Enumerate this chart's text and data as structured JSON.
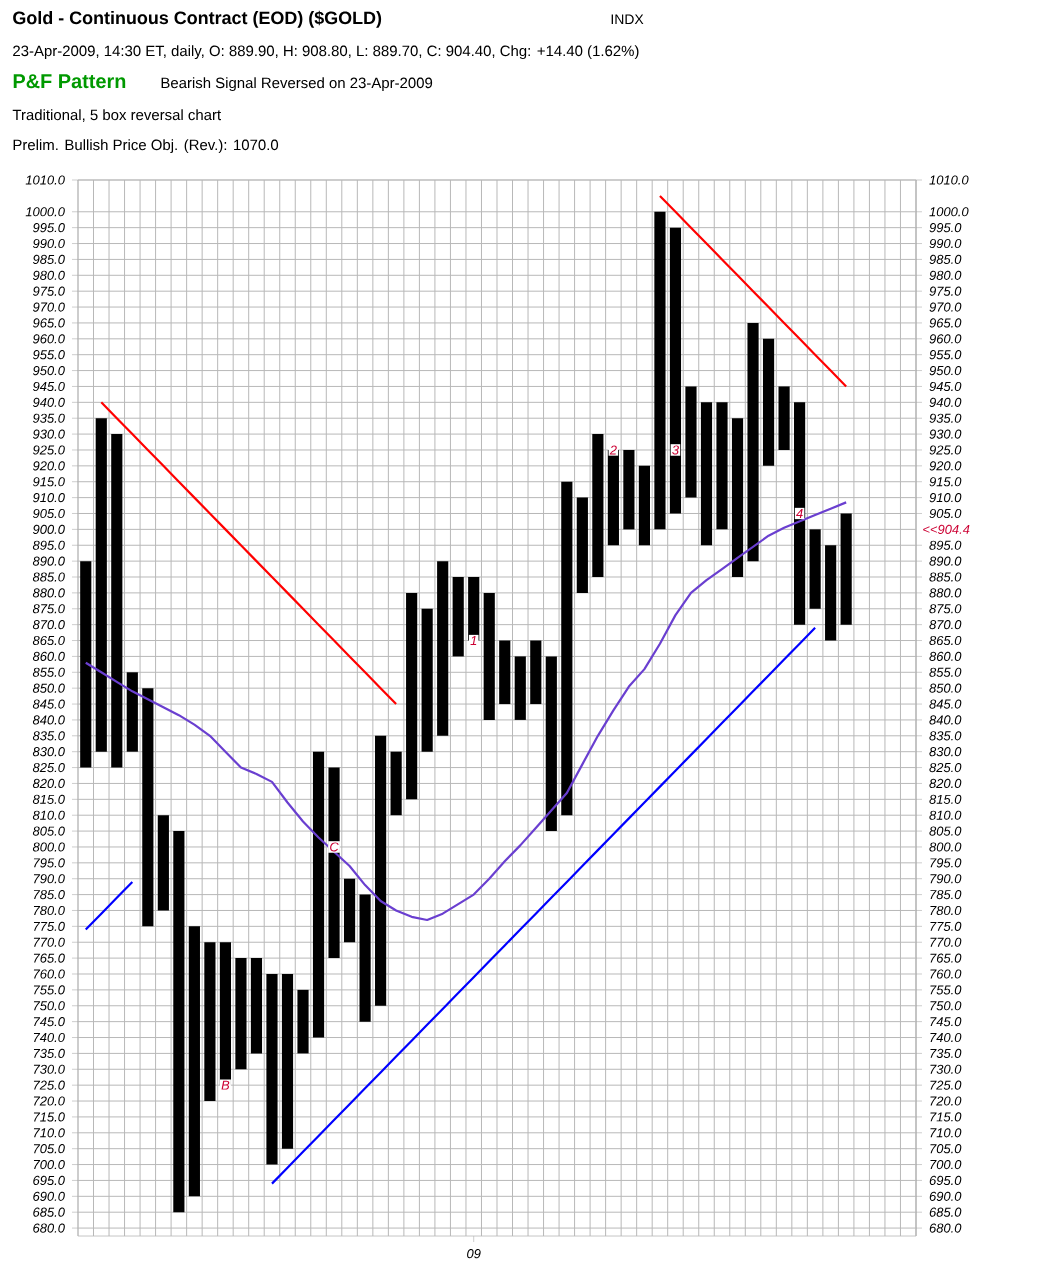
{
  "chart_data": {
    "type": "bar",
    "title": "Gold - Continuous Contract (EOD) ($GOLD)",
    "subtitle": "23-Apr-2009, 14:30 ET, daily, O: 889.90, H: 908.80, L: 889.70, C: 904.40, Chg: +14.40 (1.62%)",
    "categories": [
      null,
      null,
      null,
      null,
      null,
      null,
      null,
      null,
      null,
      null,
      null,
      null,
      null,
      null,
      null,
      null,
      null,
      null,
      null,
      null,
      null,
      null,
      null,
      null,
      null,
      "09",
      null,
      null,
      null,
      null,
      null,
      null,
      null,
      null,
      null,
      null,
      null,
      null,
      null,
      null,
      null,
      null,
      null,
      null,
      null,
      null,
      null,
      null,
      null,
      null
    ],
    "ylim": [
      677.5,
      1010
    ],
    "y2lim": [
      677.5,
      1010
    ],
    "grid": true,
    "series": [
      {
        "color": "#000000",
        "base": [
          825,
          null,
          825,
          null,
          775,
          null,
          685,
          null,
          720,
          null,
          730,
          null,
          700,
          null,
          735,
          null,
          765,
          null,
          745,
          null,
          810,
          null,
          830,
          null,
          860,
          null,
          840,
          null,
          840,
          null,
          805,
          null,
          880,
          null,
          895,
          null,
          895,
          null,
          905,
          null,
          895,
          null,
          885,
          null,
          920,
          null,
          870,
          null,
          865,
          null
        ],
        "values": [
          65,
          null,
          105,
          null,
          75,
          null,
          120,
          null,
          50,
          null,
          35,
          null,
          60,
          null,
          20,
          null,
          60,
          null,
          40,
          null,
          20,
          null,
          45,
          null,
          25,
          null,
          40,
          null,
          20,
          null,
          55,
          null,
          30,
          null,
          30,
          null,
          25,
          null,
          90,
          null,
          45,
          null,
          50,
          null,
          40,
          null,
          70,
          null,
          30,
          null
        ]
      },
      {
        "color": "#000000",
        "base": [
          null,
          830,
          null,
          830,
          null,
          780,
          null,
          690,
          null,
          725,
          null,
          735,
          null,
          705,
          null,
          740,
          null,
          770,
          null,
          750,
          null,
          815,
          null,
          835,
          null,
          865,
          null,
          845,
          null,
          845,
          null,
          810,
          null,
          885,
          null,
          900,
          null,
          900,
          null,
          910,
          null,
          900,
          null,
          890,
          null,
          925,
          null,
          875,
          null,
          870
        ],
        "values": [
          null,
          105,
          null,
          25,
          null,
          30,
          null,
          85,
          null,
          45,
          null,
          30,
          null,
          55,
          null,
          90,
          null,
          20,
          null,
          85,
          null,
          65,
          null,
          55,
          null,
          20,
          null,
          20,
          null,
          20,
          null,
          105,
          null,
          45,
          null,
          25,
          null,
          100,
          null,
          35,
          null,
          40,
          null,
          75,
          null,
          20,
          null,
          25,
          null,
          35
        ]
      },
      {
        "type": "line",
        "color": "#6a3fd0",
        "values": [
          858,
          855,
          852,
          849,
          846.5,
          844,
          841.5,
          838.5,
          835,
          830,
          825,
          823,
          820.5,
          814,
          808,
          803,
          798.5,
          794,
          788,
          783,
          780,
          778,
          777,
          779,
          782,
          785,
          790,
          795.5,
          800.5,
          806,
          811.5,
          817,
          826,
          835,
          843,
          850.5,
          856,
          864,
          873,
          880,
          884,
          887.5,
          891,
          894.5,
          898,
          900.5,
          902.5,
          904.5,
          906.5,
          908.5
        ]
      },
      {
        "type": "line",
        "color": "#ff0000",
        "values": [
          null,
          940,
          935,
          930,
          925,
          920,
          915,
          910,
          905,
          900,
          895,
          890,
          885,
          880,
          875,
          870,
          865,
          860,
          855,
          850,
          845,
          null,
          null,
          null,
          null,
          null,
          null,
          null,
          null,
          null,
          null,
          null,
          null,
          null,
          null,
          null,
          null,
          null,
          null,
          null,
          null,
          null,
          null,
          null,
          null,
          null,
          null,
          null,
          null,
          null
        ]
      },
      {
        "type": "line",
        "color": "#ff0000",
        "values": [
          null,
          null,
          null,
          null,
          null,
          null,
          null,
          null,
          null,
          null,
          null,
          null,
          null,
          null,
          null,
          null,
          null,
          null,
          null,
          null,
          null,
          null,
          null,
          null,
          null,
          null,
          null,
          null,
          null,
          null,
          null,
          null,
          null,
          null,
          null,
          null,
          null,
          1005,
          1000,
          995,
          990,
          985,
          980,
          975,
          970,
          965,
          960,
          955,
          950,
          945
        ]
      },
      {
        "type": "line",
        "color": "#0000ff",
        "values": [
          774,
          779,
          784,
          789,
          null,
          null,
          null,
          null,
          null,
          null,
          null,
          null,
          null,
          null,
          null,
          null,
          null,
          null,
          null,
          null,
          null,
          null,
          null,
          null,
          null,
          null,
          null,
          null,
          null,
          null,
          null,
          null,
          null,
          null,
          null,
          null,
          null,
          null,
          null,
          null,
          null,
          null,
          null,
          null,
          null,
          null,
          null,
          null,
          null,
          null
        ]
      },
      {
        "type": "line",
        "color": "#0000ff",
        "values": [
          null,
          null,
          null,
          null,
          null,
          null,
          null,
          null,
          null,
          null,
          null,
          null,
          694,
          699,
          704,
          709,
          714,
          719,
          724,
          729,
          734,
          739,
          744,
          749,
          754,
          759,
          764,
          769,
          774,
          779,
          784,
          789,
          794,
          799,
          804,
          809,
          814,
          819,
          824,
          829,
          834,
          839,
          844,
          849,
          854,
          859,
          864,
          869,
          null,
          null
        ]
      }
    ],
    "annotations": [
      "INDX",
      "P&F Pattern",
      "Bearish Signal Reversed on 23-Apr-2009",
      "Traditional, 5 box reversal chart",
      "Prelim. Bullish Price Obj. (Rev.): 1070.0",
      "B",
      "C",
      "1",
      "2",
      "3",
      "4",
      "<<904.4"
    ],
    "yticks": [
      {
        "value": 680,
        "label": "680.0"
      },
      {
        "value": 685,
        "label": "685.0"
      },
      {
        "value": 690,
        "label": "690.0"
      },
      {
        "value": 695,
        "label": "695.0"
      },
      {
        "value": 700,
        "label": "700.0"
      },
      {
        "value": 705,
        "label": "705.0"
      },
      {
        "value": 710,
        "label": "710.0"
      },
      {
        "value": 715,
        "label": "715.0"
      },
      {
        "value": 720,
        "label": "720.0"
      },
      {
        "value": 725,
        "label": "725.0"
      },
      {
        "value": 730,
        "label": "730.0"
      },
      {
        "value": 735,
        "label": "735.0"
      },
      {
        "value": 740,
        "label": "740.0"
      },
      {
        "value": 745,
        "label": "745.0"
      },
      {
        "value": 750,
        "label": "750.0"
      },
      {
        "value": 755,
        "label": "755.0"
      },
      {
        "value": 760,
        "label": "760.0"
      },
      {
        "value": 765,
        "label": "765.0"
      },
      {
        "value": 770,
        "label": "770.0"
      },
      {
        "value": 775,
        "label": "775.0"
      },
      {
        "value": 780,
        "label": "780.0"
      },
      {
        "value": 785,
        "label": "785.0"
      },
      {
        "value": 790,
        "label": "790.0"
      },
      {
        "value": 795,
        "label": "795.0"
      },
      {
        "value": 800,
        "label": "800.0"
      },
      {
        "value": 805,
        "label": "805.0"
      },
      {
        "value": 810,
        "label": "810.0"
      },
      {
        "value": 815,
        "label": "815.0"
      },
      {
        "value": 820,
        "label": "820.0"
      },
      {
        "value": 825,
        "label": "825.0"
      },
      {
        "value": 830,
        "label": "830.0"
      },
      {
        "value": 835,
        "label": "835.0"
      },
      {
        "value": 840,
        "label": "840.0"
      },
      {
        "value": 845,
        "label": "845.0"
      },
      {
        "value": 850,
        "label": "850.0"
      },
      {
        "value": 855,
        "label": "855.0"
      },
      {
        "value": 860,
        "label": "860.0"
      },
      {
        "value": 865,
        "label": "865.0"
      },
      {
        "value": 870,
        "label": "870.0"
      },
      {
        "value": 875,
        "label": "875.0"
      },
      {
        "value": 880,
        "label": "880.0"
      },
      {
        "value": 885,
        "label": "885.0"
      },
      {
        "value": 890,
        "label": "890.0"
      },
      {
        "value": 895,
        "label": "895.0"
      },
      {
        "value": 900,
        "label": "900.0"
      },
      {
        "value": 905,
        "label": "905.0"
      },
      {
        "value": 910,
        "label": "910.0"
      },
      {
        "value": 915,
        "label": "915.0"
      },
      {
        "value": 920,
        "label": "920.0"
      },
      {
        "value": 925,
        "label": "925.0"
      },
      {
        "value": 930,
        "label": "930.0"
      },
      {
        "value": 935,
        "label": "935.0"
      },
      {
        "value": 940,
        "label": "940.0"
      },
      {
        "value": 945,
        "label": "945.0"
      },
      {
        "value": 950,
        "label": "950.0"
      },
      {
        "value": 955,
        "label": "955.0"
      },
      {
        "value": 960,
        "label": "960.0"
      },
      {
        "value": 965,
        "label": "965.0"
      },
      {
        "value": 970,
        "label": "970.0"
      },
      {
        "value": 975,
        "label": "975.0"
      },
      {
        "value": 980,
        "label": "980.0"
      },
      {
        "value": 985,
        "label": "985.0"
      },
      {
        "value": 990,
        "label": "990.0"
      },
      {
        "value": 995,
        "label": "995.0"
      },
      {
        "value": 1000,
        "label": "1000.0"
      },
      {
        "value": 1010,
        "label": "1010.0"
      }
    ],
    "y2ticks": [
      {
        "value": 680,
        "label": "680.0"
      },
      {
        "value": 685,
        "label": "685.0"
      },
      {
        "value": 690,
        "label": "690.0"
      },
      {
        "value": 695,
        "label": "695.0"
      },
      {
        "value": 700,
        "label": "700.0"
      },
      {
        "value": 705,
        "label": "705.0"
      },
      {
        "value": 710,
        "label": "710.0"
      },
      {
        "value": 715,
        "label": "715.0"
      },
      {
        "value": 720,
        "label": "720.0"
      },
      {
        "value": 725,
        "label": "725.0"
      },
      {
        "value": 730,
        "label": "730.0"
      },
      {
        "value": 735,
        "label": "735.0"
      },
      {
        "value": 740,
        "label": "740.0"
      },
      {
        "value": 745,
        "label": "745.0"
      },
      {
        "value": 750,
        "label": "750.0"
      },
      {
        "value": 755,
        "label": "755.0"
      },
      {
        "value": 760,
        "label": "760.0"
      },
      {
        "value": 765,
        "label": "765.0"
      },
      {
        "value": 770,
        "label": "770.0"
      },
      {
        "value": 775,
        "label": "775.0"
      },
      {
        "value": 780,
        "label": "780.0"
      },
      {
        "value": 785,
        "label": "785.0"
      },
      {
        "value": 790,
        "label": "790.0"
      },
      {
        "value": 795,
        "label": "795.0"
      },
      {
        "value": 800,
        "label": "800.0"
      },
      {
        "value": 805,
        "label": "805.0"
      },
      {
        "value": 810,
        "label": "810.0"
      },
      {
        "value": 815,
        "label": "815.0"
      },
      {
        "value": 820,
        "label": "820.0"
      },
      {
        "value": 825,
        "label": "825.0"
      },
      {
        "value": 830,
        "label": "830.0"
      },
      {
        "value": 835,
        "label": "835.0"
      },
      {
        "value": 840,
        "label": "840.0"
      },
      {
        "value": 845,
        "label": "845.0"
      },
      {
        "value": 850,
        "label": "850.0"
      },
      {
        "value": 855,
        "label": "855.0"
      },
      {
        "value": 860,
        "label": "860.0"
      },
      {
        "value": 865,
        "label": "865.0"
      },
      {
        "value": 870,
        "label": "870.0"
      },
      {
        "value": 875,
        "label": "875.0"
      },
      {
        "value": 880,
        "label": "880.0"
      },
      {
        "value": 885,
        "label": "885.0"
      },
      {
        "value": 890,
        "label": "890.0"
      },
      {
        "value": 895,
        "label": "895.0"
      },
      {
        "value": 905,
        "label": "905.0"
      },
      {
        "value": 910,
        "label": "910.0"
      },
      {
        "value": 915,
        "label": "915.0"
      },
      {
        "value": 920,
        "label": "920.0"
      },
      {
        "value": 925,
        "label": "925.0"
      },
      {
        "value": 930,
        "label": "930.0"
      },
      {
        "value": 935,
        "label": "935.0"
      },
      {
        "value": 940,
        "label": "940.0"
      },
      {
        "value": 945,
        "label": "945.0"
      },
      {
        "value": 950,
        "label": "950.0"
      },
      {
        "value": 955,
        "label": "955.0"
      },
      {
        "value": 960,
        "label": "960.0"
      },
      {
        "value": 965,
        "label": "965.0"
      },
      {
        "value": 970,
        "label": "970.0"
      },
      {
        "value": 975,
        "label": "975.0"
      },
      {
        "value": 980,
        "label": "980.0"
      },
      {
        "value": 985,
        "label": "985.0"
      },
      {
        "value": 990,
        "label": "990.0"
      },
      {
        "value": 995,
        "label": "995.0"
      },
      {
        "value": 1000,
        "label": "1000.0"
      },
      {
        "value": 1010,
        "label": "1010.0"
      }
    ]
  }
}
